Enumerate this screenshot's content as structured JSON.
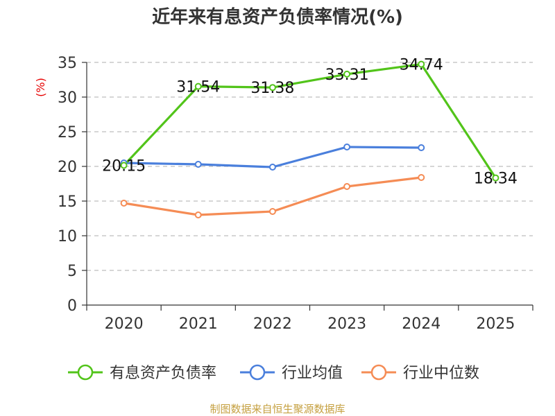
{
  "chart_data": {
    "type": "line",
    "title": "近年来有息资产负债率情况(%)",
    "ylabel": "(%)",
    "xlabel": "",
    "categories": [
      "2020",
      "2021",
      "2022",
      "2023",
      "2024",
      "2025"
    ],
    "ylim": [
      0,
      35
    ],
    "yticks": [
      0,
      5,
      10,
      15,
      20,
      25,
      30,
      35
    ],
    "grid": true,
    "legend_position": "bottom",
    "series": [
      {
        "name": "有息资产负债率",
        "color": "#52c41a",
        "values": [
          20.15,
          31.54,
          31.38,
          33.31,
          34.74,
          18.34
        ],
        "labels": [
          "20.15",
          "31.54",
          "31.38",
          "33.31",
          "34.74",
          "18.34"
        ]
      },
      {
        "name": "行业均值",
        "color": "#4a7fdc",
        "values": [
          20.5,
          20.3,
          19.9,
          22.8,
          22.7,
          null
        ]
      },
      {
        "name": "行业中位数",
        "color": "#f58c55",
        "values": [
          14.7,
          13.0,
          13.5,
          17.1,
          18.4,
          null
        ]
      }
    ],
    "source": "制图数据来自恒生聚源数据库"
  }
}
